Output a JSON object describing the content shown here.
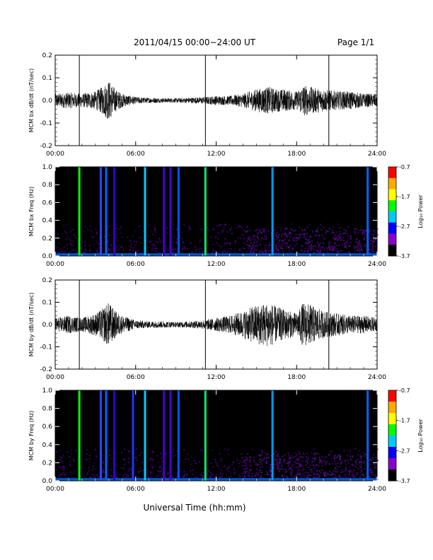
{
  "header": {
    "title": "2011/04/15  00:00−24:00 UT",
    "page": "Page 1/1"
  },
  "footer": {
    "xlabel": "Universal Time (hh:mm)"
  },
  "colorbar": {
    "label": "Log₁₀ Power",
    "ticks": [
      "-0.7",
      "-1.7",
      "-2.7",
      "-3.7"
    ],
    "range": [
      -3.7,
      -0.7
    ],
    "colors": [
      "#ff0000",
      "#ffaa00",
      "#ffff00",
      "#00ff00",
      "#00c8ff",
      "#0000ff",
      "#8800cc",
      "#000000"
    ]
  },
  "chart_data": [
    {
      "type": "line",
      "ylabel": "MCM bx dB/dt (nT/sec)",
      "xlim": [
        0,
        24
      ],
      "ylim": [
        -0.2,
        0.2
      ],
      "x_ticks": [
        "00:00",
        "06:00",
        "12:00",
        "18:00",
        "24:00"
      ],
      "y_ticks": [
        "0.2",
        "0.1",
        "0.0",
        "-0.1",
        "-0.2"
      ],
      "markers_hours": [
        1.8,
        11.2,
        20.4
      ],
      "envelope": {
        "hours": [
          0,
          1,
          2,
          3,
          3.5,
          4,
          4.5,
          5,
          6,
          7,
          8,
          9,
          10,
          11,
          12,
          13,
          14,
          15,
          16,
          16.5,
          17,
          18,
          18.5,
          19,
          20,
          21,
          22,
          23,
          24
        ],
        "amplitude": [
          0.03,
          0.035,
          0.03,
          0.04,
          0.06,
          0.09,
          0.05,
          0.03,
          0.015,
          0.012,
          0.01,
          0.01,
          0.012,
          0.015,
          0.02,
          0.02,
          0.03,
          0.05,
          0.06,
          0.05,
          0.05,
          0.04,
          0.07,
          0.06,
          0.05,
          0.04,
          0.04,
          0.03,
          0.03
        ]
      }
    },
    {
      "type": "heatmap",
      "ylabel": "MCM bx Freq (Hz)",
      "xlim": [
        0,
        24
      ],
      "ylim": [
        0,
        1.0
      ],
      "x_ticks": [
        "00:00",
        "06:00",
        "12:00",
        "18:00",
        "24:00"
      ],
      "y_ticks": [
        "1.0",
        "0.8",
        "0.6",
        "0.4",
        "0.2",
        "0.0"
      ],
      "bands": [
        {
          "hour": 1.8,
          "color": "#00ff00"
        },
        {
          "hour": 3.4,
          "color": "#3344ff"
        },
        {
          "hour": 3.8,
          "color": "#0066ff"
        },
        {
          "hour": 4.4,
          "color": "#3300cc"
        },
        {
          "hour": 6.7,
          "color": "#00ccff"
        },
        {
          "hour": 8.1,
          "color": "#4400cc"
        },
        {
          "hour": 8.6,
          "color": "#4400cc"
        },
        {
          "hour": 9.2,
          "color": "#0055ff"
        },
        {
          "hour": 11.2,
          "color": "#00ee66"
        },
        {
          "hour": 16.2,
          "color": "#0099ff"
        },
        {
          "hour": 23.3,
          "color": "#0066ff"
        }
      ]
    },
    {
      "type": "line",
      "ylabel": "MCM by dB/dt (nT/sec)",
      "xlim": [
        0,
        24
      ],
      "ylim": [
        -0.2,
        0.2
      ],
      "x_ticks": [
        "00:00",
        "06:00",
        "12:00",
        "18:00",
        "24:00"
      ],
      "y_ticks": [
        "0.2",
        "0.1",
        "0.0",
        "-0.1",
        "-0.2"
      ],
      "markers_hours": [
        1.8,
        11.2,
        20.4
      ],
      "envelope": {
        "hours": [
          0,
          1,
          2,
          3,
          3.5,
          4,
          4.5,
          5,
          6,
          7,
          8,
          9,
          10,
          11,
          12,
          13,
          14,
          15,
          16,
          16.5,
          17,
          18,
          18.5,
          19,
          20,
          21,
          22,
          23,
          24
        ],
        "amplitude": [
          0.03,
          0.04,
          0.03,
          0.05,
          0.07,
          0.1,
          0.06,
          0.04,
          0.02,
          0.015,
          0.015,
          0.012,
          0.015,
          0.02,
          0.03,
          0.04,
          0.06,
          0.09,
          0.1,
          0.08,
          0.07,
          0.05,
          0.1,
          0.09,
          0.06,
          0.05,
          0.04,
          0.04,
          0.03
        ]
      }
    },
    {
      "type": "heatmap",
      "ylabel": "MCM by Freq (Hz)",
      "xlim": [
        0,
        24
      ],
      "ylim": [
        0,
        1.0
      ],
      "x_ticks": [
        "00:00",
        "06:00",
        "12:00",
        "18:00",
        "24:00"
      ],
      "y_ticks": [
        "1.0",
        "0.8",
        "0.6",
        "0.4",
        "0.2",
        "0.0"
      ],
      "bands": [
        {
          "hour": 1.8,
          "color": "#00ff00"
        },
        {
          "hour": 3.4,
          "color": "#3344ff"
        },
        {
          "hour": 3.8,
          "color": "#0066ff"
        },
        {
          "hour": 4.4,
          "color": "#3300cc"
        },
        {
          "hour": 5.8,
          "color": "#2233ff"
        },
        {
          "hour": 6.7,
          "color": "#00ccff"
        },
        {
          "hour": 8.1,
          "color": "#4400cc"
        },
        {
          "hour": 8.6,
          "color": "#4400cc"
        },
        {
          "hour": 9.2,
          "color": "#0055ff"
        },
        {
          "hour": 11.2,
          "color": "#00ee66"
        },
        {
          "hour": 16.2,
          "color": "#0099ff"
        },
        {
          "hour": 23.3,
          "color": "#0066ff"
        }
      ]
    }
  ]
}
